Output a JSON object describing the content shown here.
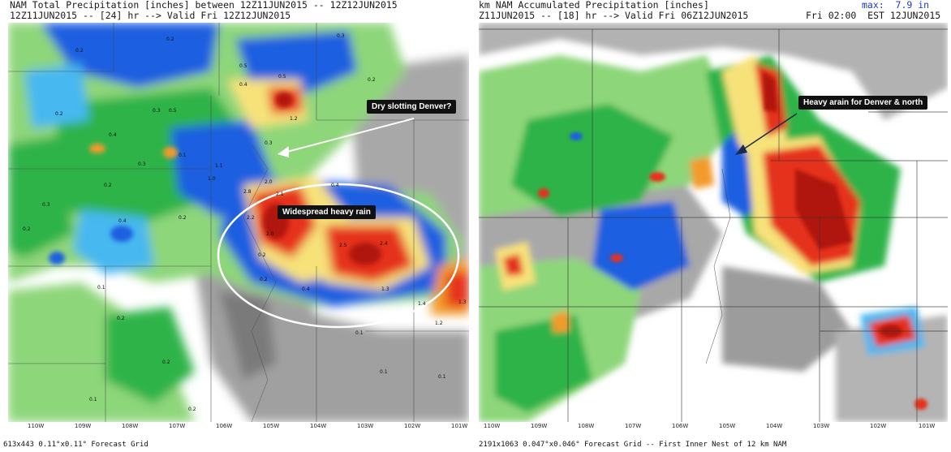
{
  "left_panel": {
    "title_line1": "NAM Total Precipitation [inches] between 12Z11JUN2015 -- 12Z12JUN2015",
    "title_line2": "12Z11JUN2015 -- [24] hr --> Valid Fri 12Z12JUN2015",
    "lon_ticks": [
      "110W",
      "109W",
      "108W",
      "107W",
      "106W",
      "105W",
      "104W",
      "103W",
      "102W",
      "101W"
    ],
    "footer": "613x443 0.11°x0.11° Forecast Grid",
    "annotation_dry": "Dry slotting Denver?",
    "annotation_heavy": "Widespread heavy rain",
    "contour_labels": [
      "0.2",
      "0.5",
      "0.3",
      "0.2",
      "0.4",
      "0.5",
      "1.2",
      "0.2",
      "0.3",
      "0.5",
      "0.4",
      "0.2",
      "0.1",
      "0.3",
      "0.3",
      "1.1",
      "1.0",
      "2.8",
      "2.0",
      "2.1",
      "0.4",
      "0.2",
      "0.3",
      "0.2",
      "0.2",
      "0.4",
      "2.2",
      "2.0",
      "2.5",
      "2.4",
      "0.2",
      "0.1",
      "0.2",
      "0.4",
      "1.3",
      "1.4",
      "1.3",
      "1.2",
      "0.2",
      "0.1",
      "0.1",
      "0.1",
      "0.2",
      "0.2",
      "0.1"
    ],
    "colors": {
      "green": "#2fb34a",
      "lightgreen": "#8ed67a",
      "blue": "#1f5fe0",
      "cyan": "#47b8f0",
      "yellow": "#f7e27a",
      "orange": "#f39a2a",
      "red": "#e5321a",
      "darkred": "#b0140c",
      "gray": "#9a9a9a",
      "darkgray": "#6e6e6e"
    }
  },
  "right_panel": {
    "title_line1": "km NAM Accumulated Precipitation [inches]",
    "title_line2": "Z11JUN2015 -- [18] hr --> Valid Fri 06Z12JUN2015",
    "max_label": "max:  7.9 in",
    "local_time": "Fri 02:00  EST 12JUN2015",
    "lon_ticks": [
      "110W",
      "109W",
      "108W",
      "107W",
      "106W",
      "105W",
      "104W",
      "103W",
      "102W",
      "101W"
    ],
    "footer": "2191x1063 0.047°x0.046° Forecast Grid -- First Inner Nest of 12 km NAM",
    "annotation_heavy": "Heavy arain for Denver & north"
  }
}
